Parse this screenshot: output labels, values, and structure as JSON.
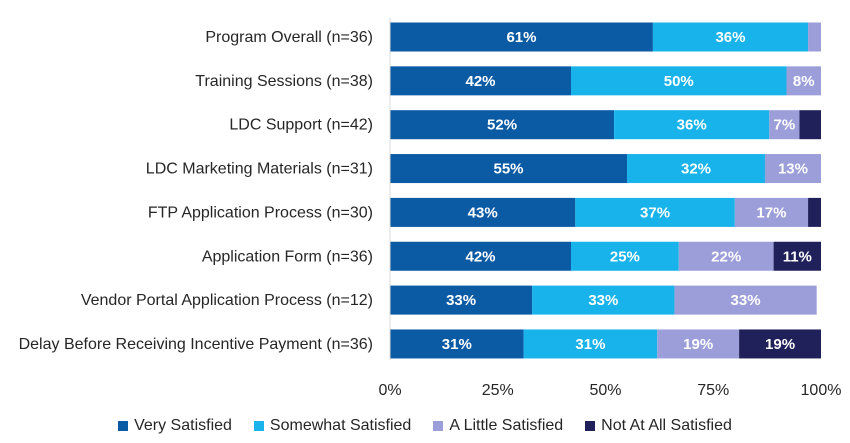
{
  "chart_data": {
    "type": "bar",
    "orientation": "horizontal",
    "stacked": true,
    "title": "",
    "xlabel": "",
    "ylabel": "",
    "xlim": [
      0,
      100
    ],
    "x_ticks": [
      "0%",
      "25%",
      "50%",
      "75%",
      "100%"
    ],
    "grid": false,
    "legend_position": "bottom",
    "categories": [
      "Program Overall (n=36)",
      "Training Sessions (n=38)",
      "LDC Support (n=42)",
      "LDC Marketing Materials (n=31)",
      "FTP Application Process (n=30)",
      "Application Form (n=36)",
      "Vendor Portal Application Process (n=12)",
      "Delay Before Receiving Incentive Payment (n=36)"
    ],
    "series": [
      {
        "name": "Very Satisfied",
        "color": "#0b5aa4",
        "values": [
          61,
          42,
          52,
          55,
          43,
          42,
          33,
          31
        ],
        "labels": [
          "61%",
          "42%",
          "52%",
          "55%",
          "43%",
          "42%",
          "33%",
          "31%"
        ]
      },
      {
        "name": "Somewhat Satisfied",
        "color": "#17b3ea",
        "values": [
          36,
          50,
          36,
          32,
          37,
          25,
          33,
          31
        ],
        "labels": [
          "36%",
          "50%",
          "36%",
          "32%",
          "37%",
          "25%",
          "33%",
          "31%"
        ]
      },
      {
        "name": "A Little Satisfied",
        "color": "#9b9ed9",
        "values": [
          3,
          8,
          7,
          13,
          17,
          22,
          33,
          19
        ],
        "labels": [
          "",
          "8%",
          "7%",
          "13%",
          "17%",
          "22%",
          "33%",
          "19%"
        ]
      },
      {
        "name": "Not At All Satisfied",
        "color": "#20215a",
        "values": [
          0,
          0,
          5,
          0,
          3,
          11,
          0,
          19
        ],
        "labels": [
          "",
          "",
          "",
          "",
          "",
          "11%",
          "",
          "19%"
        ]
      }
    ]
  }
}
